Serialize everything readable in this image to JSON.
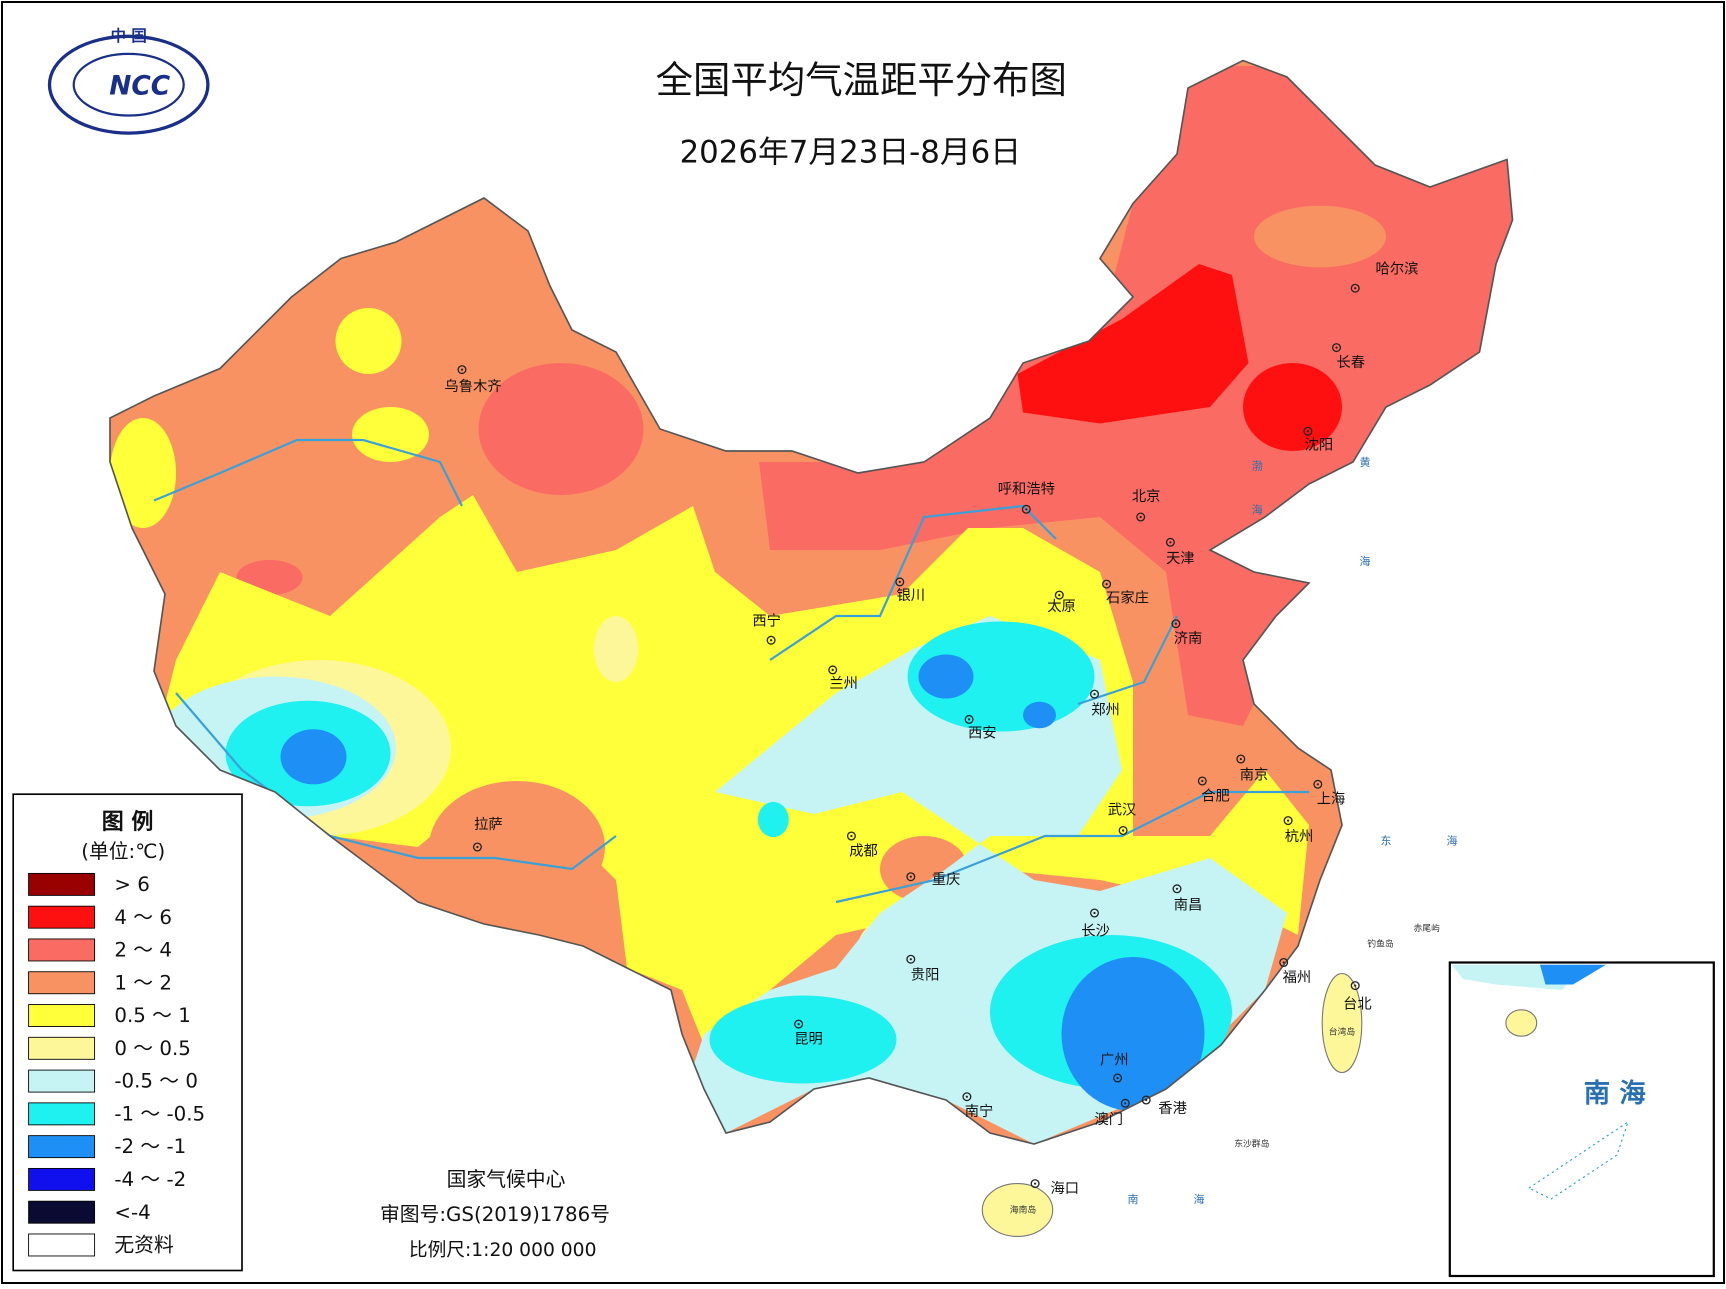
{
  "logo": {
    "country": "中 国",
    "abbr": "NCC"
  },
  "header": {
    "title": "全国平均气温距平分布图",
    "date": "2026年7月23日-8月6日"
  },
  "legend": {
    "title": "图 例",
    "unit": "(单位:℃)",
    "items": [
      {
        "label": "> 6",
        "color": "#990000"
      },
      {
        "label": "4 ～ 6",
        "color": "#ff1010"
      },
      {
        "label": "2 ～ 4",
        "color": "#fa6b63"
      },
      {
        "label": "1 ～ 2",
        "color": "#f99262"
      },
      {
        "label": "0.5 ～ 1",
        "color": "#ffff3a"
      },
      {
        "label": "0 ～ 0.5",
        "color": "#fdf79a"
      },
      {
        "label": "-0.5 ～ 0",
        "color": "#c6f3f3"
      },
      {
        "label": "-1 ～ -0.5",
        "color": "#1ff0f0"
      },
      {
        "label": "-2 ～ -1",
        "color": "#1e8ff5"
      },
      {
        "label": "-4 ～ -2",
        "color": "#1010ee"
      },
      {
        "label": "<-4",
        "color": "#0a0a33"
      },
      {
        "label": "无资料",
        "color": "#ffffff"
      }
    ]
  },
  "cities": [
    "乌鲁木齐",
    "呼和浩特",
    "北京",
    "天津",
    "哈尔滨",
    "长春",
    "沈阳",
    "银川",
    "太原",
    "石家庄",
    "西宁",
    "兰州",
    "济南",
    "郑州",
    "西安",
    "南京",
    "合肥",
    "上海",
    "杭州",
    "武汉",
    "拉萨",
    "成都",
    "重庆",
    "长沙",
    "南昌",
    "贵阳",
    "福州",
    "台北",
    "昆明",
    "广州",
    "南宁",
    "香港",
    "澳门",
    "海口"
  ],
  "seas": [
    "渤海",
    "黄海",
    "东海",
    "南海"
  ],
  "islands": [
    "钓鱼岛",
    "赤尾屿",
    "台湾岛",
    "海南岛",
    "东沙群岛"
  ],
  "inset": {
    "label": "南 海"
  },
  "footer": {
    "agency": "国家气候中心",
    "approval": "审图号:GS(2019)1786号",
    "scale": "比例尺:1:20 000 000"
  }
}
